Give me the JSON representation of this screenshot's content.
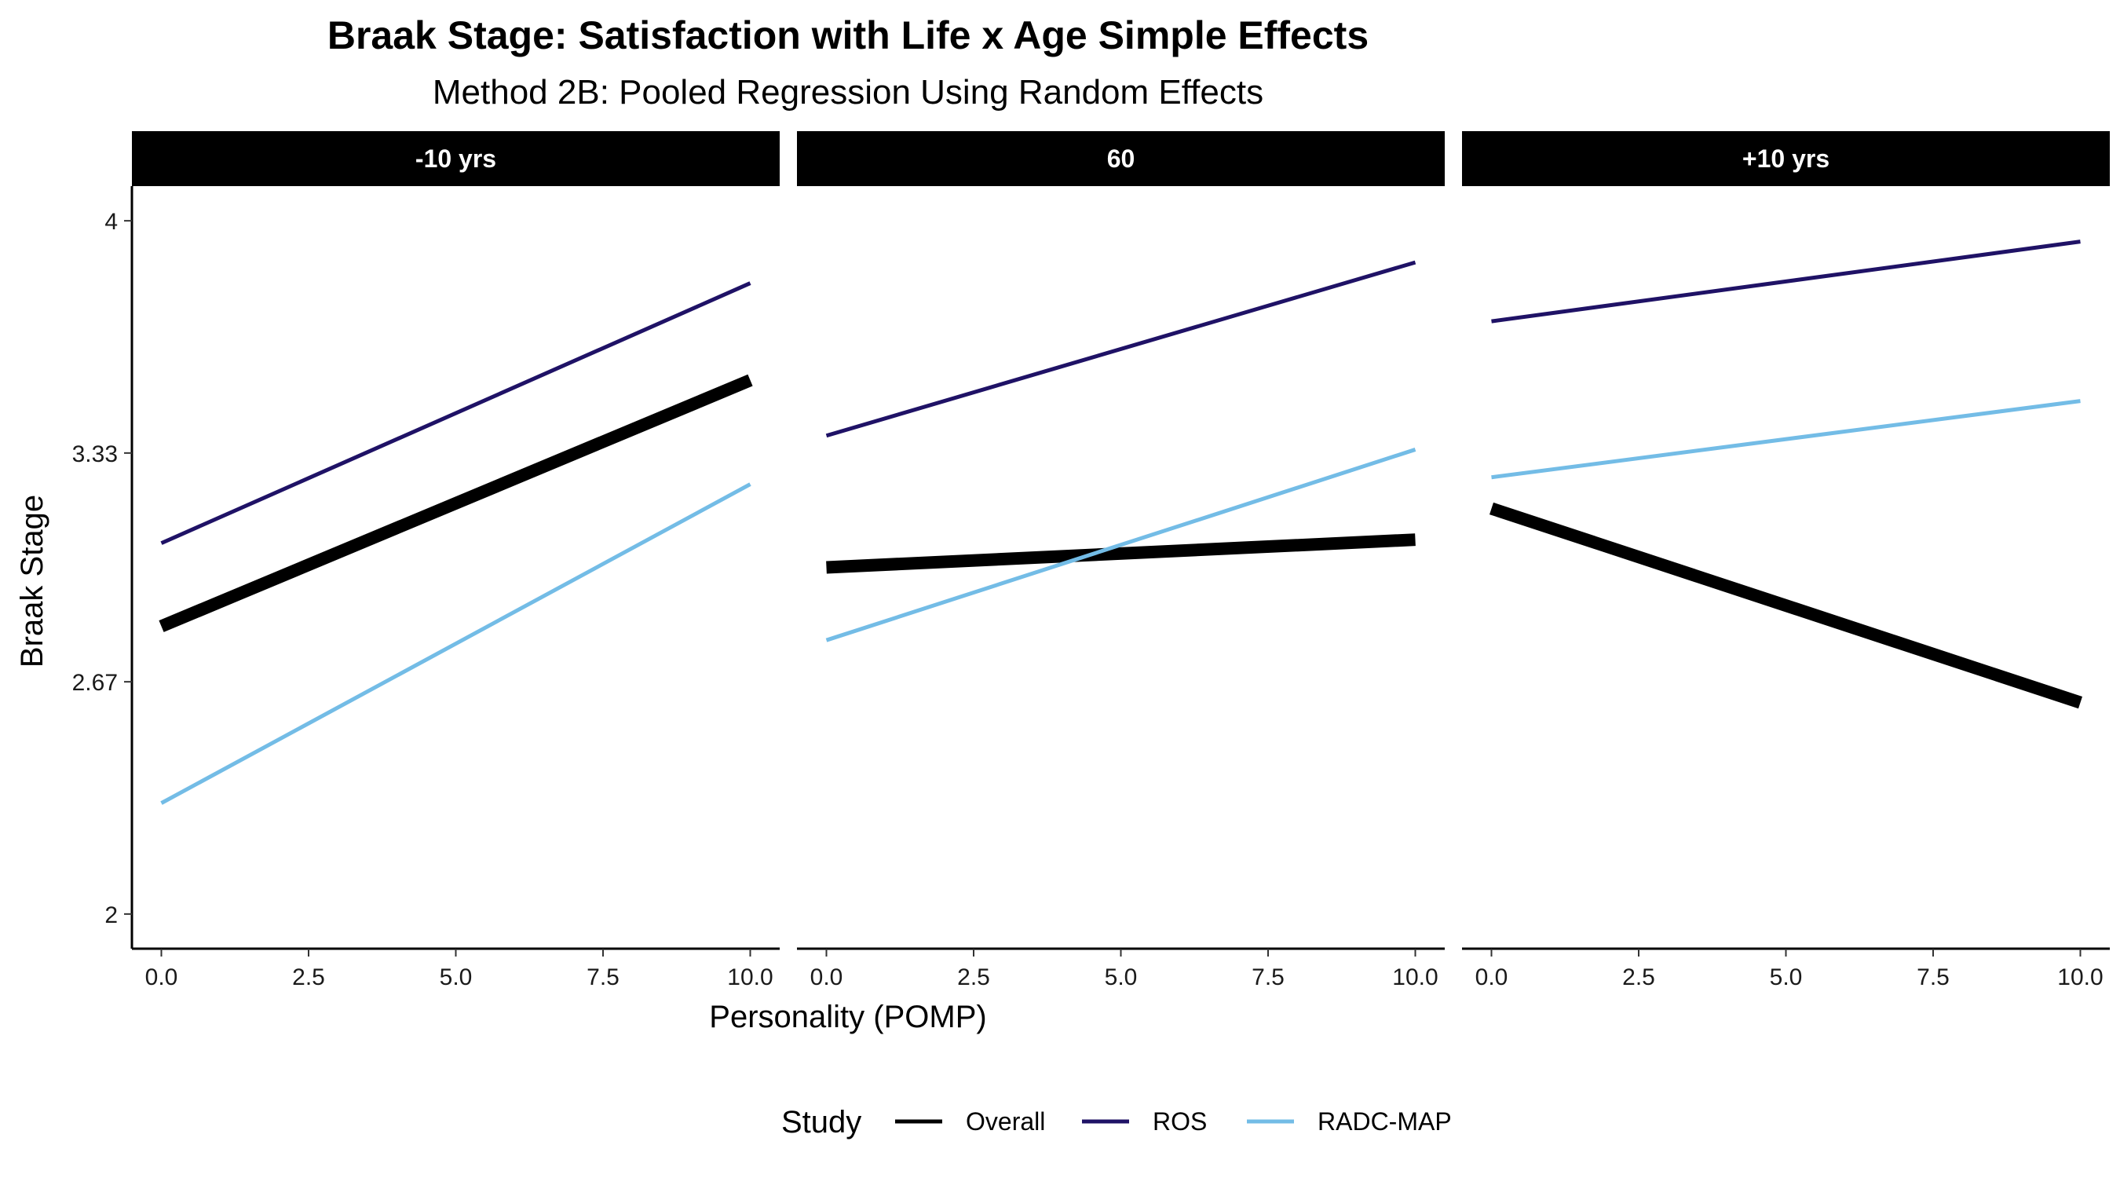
{
  "chart_data": {
    "type": "line",
    "title": "Braak Stage: Satisfaction with Life x Age Simple Effects",
    "subtitle": "Method 2B: Pooled Regression Using Random Effects",
    "xlabel": "Personality (POMP)",
    "ylabel": "Braak Stage",
    "xlim": [
      -0.5,
      10.5
    ],
    "ylim": [
      1.9,
      4.1
    ],
    "x_ticks": [
      0,
      2.5,
      5,
      7.5,
      10
    ],
    "x_tick_labels": [
      "0.0",
      "2.5",
      "5.0",
      "7.5",
      "10.0"
    ],
    "y_ticks": [
      2,
      2.67,
      3.33,
      4
    ],
    "y_tick_labels": [
      "2",
      "2.67",
      "3.33",
      "4"
    ],
    "grid": false,
    "legend": {
      "title": "Study",
      "position": "bottom",
      "entries": [
        "Overall",
        "ROS",
        "RADC-MAP"
      ]
    },
    "series_style": {
      "Overall": {
        "color": "#000000",
        "width": "thick"
      },
      "ROS": {
        "color": "#1f1266",
        "width": "thin"
      },
      "RADC-MAP": {
        "color": "#73bce6",
        "width": "thin"
      }
    },
    "panels": [
      {
        "label": "-10 yrs",
        "series": [
          {
            "name": "Overall",
            "x": [
              0,
              10
            ],
            "y": [
              2.83,
              3.54
            ]
          },
          {
            "name": "ROS",
            "x": [
              0,
              10
            ],
            "y": [
              3.07,
              3.82
            ]
          },
          {
            "name": "RADC-MAP",
            "x": [
              0,
              10
            ],
            "y": [
              2.32,
              3.24
            ]
          }
        ]
      },
      {
        "label": "60",
        "series": [
          {
            "name": "Overall",
            "x": [
              0,
              10
            ],
            "y": [
              3.0,
              3.08
            ]
          },
          {
            "name": "ROS",
            "x": [
              0,
              10
            ],
            "y": [
              3.38,
              3.88
            ]
          },
          {
            "name": "RADC-MAP",
            "x": [
              0,
              10
            ],
            "y": [
              2.79,
              3.34
            ]
          }
        ]
      },
      {
        "label": "+10 yrs",
        "series": [
          {
            "name": "Overall",
            "x": [
              0,
              10
            ],
            "y": [
              3.17,
              2.61
            ]
          },
          {
            "name": "ROS",
            "x": [
              0,
              10
            ],
            "y": [
              3.71,
              3.94
            ]
          },
          {
            "name": "RADC-MAP",
            "x": [
              0,
              10
            ],
            "y": [
              3.26,
              3.48
            ]
          }
        ]
      }
    ]
  }
}
